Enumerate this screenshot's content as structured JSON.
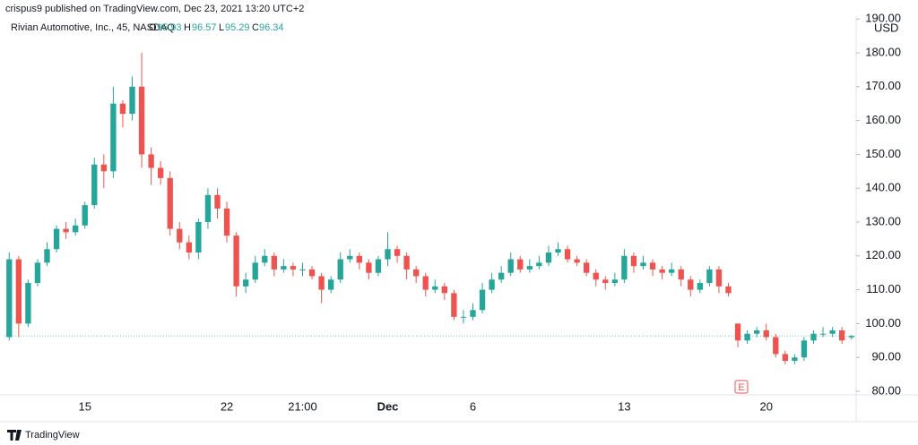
{
  "header": {
    "published": "crispus9 published on TradingView.com, Dec 23, 2021 13:20 UTC+2",
    "logo": "TradingView"
  },
  "chart_data": {
    "type": "candlestick",
    "legend": {
      "symbol": "Rivian Automotive, Inc., 45, NASDAQ",
      "open": "O",
      "high": "H",
      "low": "L",
      "close": "C"
    },
    "currency": "USD",
    "earnings_marker": "E",
    "up_color": "#26a69a",
    "down_color": "#ef5350",
    "last_line_color": "#26a69a",
    "grid": false,
    "ylim": [
      78.94,
      190.85
    ],
    "yticks": [
      {
        "value": 80,
        "label": "80.00"
      },
      {
        "value": 90,
        "label": "90.00"
      },
      {
        "value": 100,
        "label": "100.00"
      },
      {
        "value": 110,
        "label": "110.00"
      },
      {
        "value": 120,
        "label": "120.00"
      },
      {
        "value": 130,
        "label": "130.00"
      },
      {
        "value": 140,
        "label": "140.00"
      },
      {
        "value": 150,
        "label": "150.00"
      },
      {
        "value": 160,
        "label": "160.00"
      },
      {
        "value": 170,
        "label": "170.00"
      },
      {
        "value": 180,
        "label": "180.00"
      },
      {
        "value": 190,
        "label": "190.00"
      }
    ],
    "categories": [
      null,
      null,
      null,
      null,
      null,
      null,
      null,
      null,
      "15",
      null,
      null,
      null,
      null,
      null,
      null,
      null,
      null,
      null,
      null,
      null,
      null,
      null,
      null,
      "22",
      null,
      null,
      null,
      null,
      null,
      null,
      null,
      "21:00",
      null,
      null,
      null,
      null,
      null,
      null,
      null,
      null,
      "Dec",
      null,
      null,
      null,
      null,
      null,
      null,
      null,
      null,
      "6",
      null,
      null,
      null,
      null,
      null,
      null,
      null,
      null,
      null,
      null,
      null,
      null,
      null,
      null,
      null,
      "13",
      null,
      null,
      null,
      null,
      null,
      null,
      null,
      null,
      null,
      null,
      null,
      null,
      null,
      null,
      "20",
      null,
      null,
      null,
      null,
      null,
      null,
      null,
      null,
      null
    ],
    "open": [
      96,
      119,
      100,
      112,
      118,
      122,
      128,
      127,
      129,
      135,
      147,
      145,
      165,
      162,
      170,
      150,
      146,
      143,
      128,
      124,
      121,
      130,
      138,
      134,
      126,
      111,
      113,
      118,
      120,
      116,
      117,
      116,
      116,
      114,
      110,
      113,
      119,
      120,
      118,
      115,
      119,
      122,
      120,
      116,
      114,
      110,
      111,
      109,
      102,
      102,
      104,
      110,
      113,
      115,
      119,
      116,
      117,
      118,
      121,
      122,
      119,
      118,
      115,
      113,
      112,
      113,
      120,
      117,
      118,
      116,
      115,
      116,
      113,
      110,
      112,
      116,
      111,
      100,
      95,
      97,
      98,
      96,
      91,
      89,
      90,
      95,
      97,
      97,
      98,
      95.93
    ],
    "high": [
      121,
      120,
      113,
      119,
      124,
      129,
      130,
      131,
      136,
      149,
      150,
      170,
      166,
      173,
      180,
      152,
      148,
      145,
      130,
      126,
      131,
      140,
      140,
      136,
      127,
      115,
      120,
      122,
      121,
      119,
      118,
      118,
      117,
      115,
      114,
      121,
      122,
      121,
      119,
      120,
      127,
      123,
      121,
      117,
      115,
      113,
      112,
      110,
      104,
      106,
      112,
      115,
      117,
      121,
      120,
      119,
      120,
      123,
      124,
      123,
      120,
      119,
      116,
      114,
      115,
      122,
      121,
      120,
      119,
      117,
      118,
      117,
      114,
      113,
      117,
      117,
      112,
      100,
      98,
      99,
      100,
      97,
      92,
      91,
      96,
      98,
      99,
      99,
      99,
      96.57
    ],
    "low": [
      95,
      96,
      99,
      111,
      117,
      121,
      125,
      126,
      128,
      134,
      140,
      143,
      158,
      160,
      146,
      141,
      141,
      126,
      122,
      119,
      119,
      128,
      131,
      124,
      108,
      109,
      112,
      117,
      114,
      115,
      114,
      114,
      113,
      106,
      109,
      112,
      118,
      116,
      113,
      114,
      117,
      118,
      113,
      112,
      108,
      109,
      107,
      101,
      100,
      101,
      103,
      109,
      112,
      114,
      115,
      115,
      116,
      117,
      120,
      118,
      117,
      114,
      111,
      110,
      111,
      112,
      115,
      116,
      114,
      113,
      114,
      111,
      108,
      109,
      111,
      109,
      108,
      93,
      94,
      96,
      95,
      90,
      88,
      88,
      89,
      94,
      96,
      96,
      94,
      95.29
    ],
    "close": [
      119,
      100,
      112,
      118,
      122,
      128,
      127,
      129,
      135,
      147,
      145,
      165,
      162,
      170,
      150,
      146,
      143,
      128,
      124,
      121,
      130,
      138,
      134,
      126,
      111,
      113,
      118,
      120,
      116,
      117,
      116,
      116,
      114,
      110,
      113,
      119,
      120,
      118,
      115,
      119,
      122,
      120,
      116,
      114,
      110,
      111,
      109,
      102,
      102,
      104,
      110,
      113,
      115,
      119,
      116,
      117,
      118,
      121,
      122,
      119,
      118,
      115,
      113,
      112,
      113,
      120,
      117,
      118,
      116,
      115,
      116,
      113,
      110,
      112,
      116,
      111,
      109,
      95,
      97,
      98,
      96,
      91,
      89,
      90,
      95,
      97,
      97,
      98,
      95,
      96.34
    ]
  }
}
